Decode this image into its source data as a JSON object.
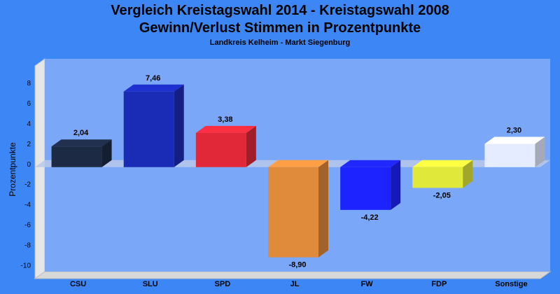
{
  "header": {
    "title": "Vergleich Kreistagswahl 2014 - Kreistagswahl 2008",
    "subtitle": "Gewinn/Verlust Stimmen in Prozentpunkte",
    "caption": "Landkreis Kelheim - Markt Siegenburg"
  },
  "chart_data": {
    "type": "bar",
    "title": "Vergleich Kreistagswahl 2014 - Kreistagswahl 2008",
    "subtitle": "Gewinn/Verlust Stimmen in Prozentpunkte",
    "caption": "Landkreis Kelheim - Markt Siegenburg",
    "xlabel": "",
    "ylabel": "Prozentpunkte",
    "categories": [
      "CSU",
      "SLU",
      "SPD",
      "JL",
      "FW",
      "FDP",
      "Sonstige"
    ],
    "values": [
      2.04,
      7.46,
      3.38,
      -8.9,
      -4.22,
      -2.05,
      2.3
    ],
    "value_labels": [
      "2,04",
      "7,46",
      "3,38",
      "-8,90",
      "-4,22",
      "-2,05",
      "2,30"
    ],
    "colors": [
      "#1c2a44",
      "#1a2bb5",
      "#e02838",
      "#e08a3c",
      "#1c23ff",
      "#e0e83a",
      "#e6ecff"
    ],
    "yticks": [
      8,
      6,
      4,
      2,
      0,
      -2,
      -4,
      -6,
      -8,
      -10
    ],
    "ylim": [
      -11,
      10
    ],
    "grid": false,
    "legend": "none",
    "style": "3d",
    "background": "#3d86f5",
    "plot_background": "#7aa7f7"
  }
}
